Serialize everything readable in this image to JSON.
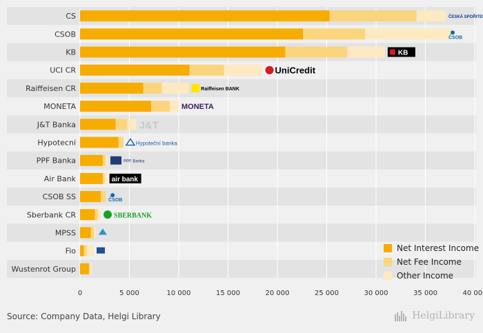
{
  "chart_data": {
    "type": "bar",
    "orientation": "horizontal",
    "stacked": true,
    "categories": [
      "CS",
      "CSOB",
      "KB",
      "UCI CR",
      "Raiffeisen CR",
      "MONETA",
      "J&T Banka",
      "Hypotecni",
      "PPF Banka",
      "Air Bank",
      "CSOB SS",
      "Sberbank CR",
      "MPSS",
      "Fio",
      "Wustenrot Group"
    ],
    "series": [
      {
        "name": "Net Interest Income",
        "color": "#f6ac00",
        "values": [
          25300,
          22600,
          20800,
          11100,
          6400,
          7200,
          3600,
          3900,
          2300,
          2300,
          2100,
          1500,
          1100,
          400,
          900
        ]
      },
      {
        "name": "Net Fee Income",
        "color": "#fbd57e",
        "values": [
          8800,
          6300,
          6300,
          3500,
          1900,
          1900,
          1200,
          500,
          300,
          200,
          500,
          300,
          300,
          300,
          100
        ]
      },
      {
        "name": "Other Income",
        "color": "#fdeac3",
        "values": [
          3000,
          8700,
          3800,
          3900,
          2700,
          900,
          900,
          0,
          200,
          200,
          0,
          300,
          200,
          700,
          200
        ]
      }
    ],
    "xlim": [
      0,
      40000
    ],
    "xticks": [
      "0",
      "5 000",
      "10 000",
      "15 000",
      "20 000",
      "25 000",
      "30 000",
      "35 000",
      "40 000"
    ],
    "xtick_values": [
      0,
      5000,
      10000,
      15000,
      20000,
      25000,
      30000,
      35000,
      40000
    ],
    "logos": [
      {
        "text": "ČESKÁ SPOŘITELNA",
        "icon": "ceska-sporitelna-logo",
        "color": "#0b3d91"
      },
      {
        "text": "ČSOB",
        "icon": "csob-logo",
        "color": "#0a6bb0"
      },
      {
        "text": "KB",
        "icon": "kb-logo",
        "color": "#000000"
      },
      {
        "text": "UniCredit",
        "icon": "unicredit-logo",
        "color": "#d71920"
      },
      {
        "text": "Raiffeisen BANK",
        "icon": "raiffeisen-logo",
        "color": "#000000"
      },
      {
        "text": "MONETA",
        "icon": "moneta-logo",
        "color": "#3a1f5d"
      },
      {
        "text": "J&T",
        "icon": "jt-logo",
        "color": "#c8c8c8"
      },
      {
        "text": "Hypoteční banka",
        "icon": "hypotecni-logo",
        "color": "#1f5ea8"
      },
      {
        "text": "PPF Banka",
        "icon": "ppf-logo",
        "color": "#1f3b7a"
      },
      {
        "text": "air bank",
        "icon": "airbank-logo",
        "color": "#000000"
      },
      {
        "text": "ČSOB",
        "icon": "csob-ss-logo",
        "color": "#0a6bb0"
      },
      {
        "text": "SBERBANK",
        "icon": "sberbank-logo",
        "color": "#1a9f29"
      },
      {
        "text": "",
        "icon": "mpss-logo",
        "color": "#2a8fd0"
      },
      {
        "text": "",
        "icon": "fio-logo",
        "color": "#1f4f9a"
      },
      {
        "text": "",
        "icon": "wustenrot-logo",
        "color": "#888888"
      }
    ]
  },
  "footer": {
    "source": "Source: Company Data, Helgi Library",
    "brand": "HelgiLibrary"
  },
  "colors": {
    "background": "#f0f0f0",
    "row_band": "#e3e3e3",
    "gridline": "#ffffff",
    "axis_text": "#333333"
  }
}
